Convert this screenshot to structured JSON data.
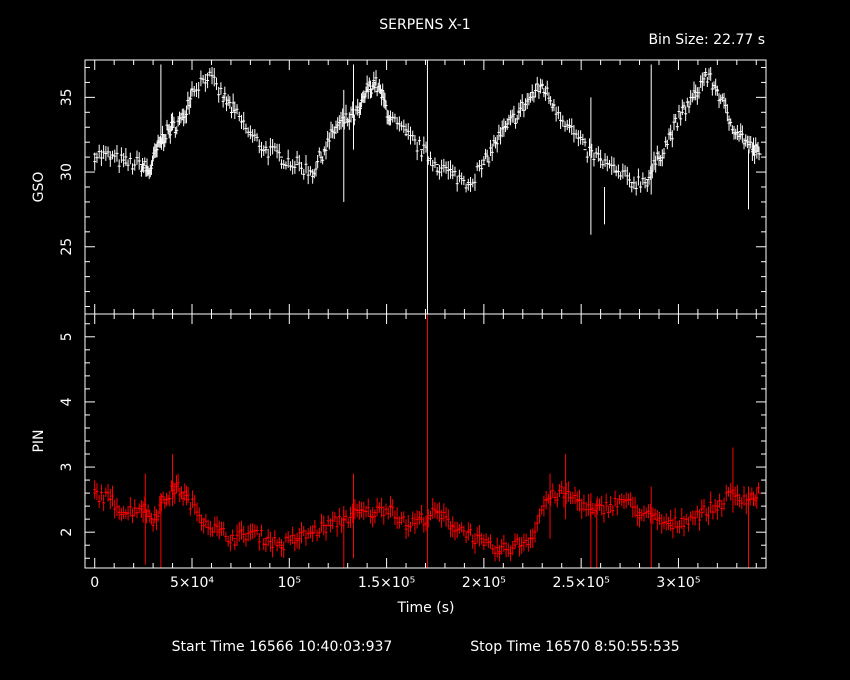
{
  "title": "SERPENS X-1",
  "bin_size_label": "Bin Size: 22.77 s",
  "start_label": "Start Time 16566 10:40:03:937",
  "stop_label": "Stop Time 16570  8:50:55:535",
  "colors": {
    "background": "#000000",
    "gso": "#ffffff",
    "pin": "#ff0000",
    "axes": "#ffffff"
  },
  "chart_data": [
    {
      "type": "line",
      "panel": "upper",
      "ylabel": "GSO",
      "ylim": [
        20.5,
        37.5
      ],
      "yticks": [
        25,
        30,
        35
      ],
      "xlim": [
        -5000,
        345000
      ],
      "series": [
        {
          "color": "#ffffff",
          "x": [
            0,
            8000,
            16000,
            24000,
            28000,
            32000,
            36000,
            40000,
            45000,
            50000,
            58000,
            66000,
            72000,
            80000,
            88000,
            96000,
            104000,
            112000,
            118000,
            124000,
            130000,
            136000,
            140000,
            144000,
            148000,
            152000,
            160000,
            168000,
            176000,
            184000,
            192000,
            200000,
            206000,
            212000,
            218000,
            224000,
            230000,
            236000,
            244000,
            252000,
            260000,
            268000,
            276000,
            284000,
            290000,
            296000,
            302000,
            308000,
            314000,
            320000,
            326000,
            332000,
            338000,
            342000
          ],
          "values": [
            31.2,
            31.0,
            30.6,
            30.5,
            30.0,
            31.5,
            32.5,
            33.0,
            33.5,
            35.5,
            36.5,
            35.0,
            34.0,
            32.5,
            31.5,
            31.0,
            30.5,
            30.0,
            31.5,
            33.0,
            33.5,
            34.0,
            35.5,
            36.0,
            35.0,
            33.5,
            32.5,
            31.5,
            30.5,
            29.8,
            29.3,
            30.5,
            32.0,
            33.0,
            34.0,
            35.0,
            35.8,
            34.5,
            33.0,
            31.5,
            30.8,
            30.0,
            29.3,
            29.5,
            31.0,
            32.5,
            34.0,
            35.0,
            36.5,
            35.5,
            33.5,
            32.5,
            31.5,
            31.2
          ]
        }
      ],
      "spikes": [
        {
          "x": 34000,
          "low": 32.0,
          "high": 37.2
        },
        {
          "x": 128000,
          "low": 28.0,
          "high": 35.5
        },
        {
          "x": 133000,
          "low": 31.5,
          "high": 37.2
        },
        {
          "x": 171000,
          "low": 20.5,
          "high": 37.5
        },
        {
          "x": 255000,
          "low": 25.8,
          "high": 35.0
        },
        {
          "x": 262000,
          "low": 26.5,
          "high": 29.0
        },
        {
          "x": 286000,
          "low": 28.5,
          "high": 37.2
        },
        {
          "x": 336000,
          "low": 27.5,
          "high": 31.5
        }
      ]
    },
    {
      "type": "line",
      "panel": "lower",
      "ylabel": "PIN",
      "xlabel": "Time (s)",
      "ylim": [
        1.45,
        5.35
      ],
      "yticks": [
        2,
        3,
        4,
        5
      ],
      "xlim": [
        -5000,
        345000
      ],
      "xticks": [
        0,
        50000,
        100000,
        150000,
        200000,
        250000,
        300000
      ],
      "xtick_labels": [
        "0",
        "5×10⁴",
        "10⁵",
        "1.5×10⁵",
        "2×10⁵",
        "2.5×10⁵",
        "3×10⁵"
      ],
      "series": [
        {
          "color": "#ff0000",
          "x": [
            0,
            8000,
            16000,
            24000,
            30000,
            36000,
            42000,
            48000,
            56000,
            64000,
            72000,
            80000,
            88000,
            96000,
            104000,
            112000,
            120000,
            128000,
            136000,
            144000,
            152000,
            160000,
            168000,
            176000,
            184000,
            192000,
            200000,
            208000,
            216000,
            224000,
            232000,
            240000,
            248000,
            256000,
            264000,
            272000,
            280000,
            288000,
            296000,
            304000,
            312000,
            320000,
            328000,
            336000,
            342000
          ],
          "values": [
            2.6,
            2.5,
            2.3,
            2.4,
            2.2,
            2.5,
            2.7,
            2.5,
            2.2,
            2.0,
            1.9,
            2.0,
            1.9,
            1.8,
            1.9,
            2.0,
            2.1,
            2.2,
            2.3,
            2.3,
            2.4,
            2.1,
            2.2,
            2.3,
            2.1,
            2.0,
            1.8,
            1.7,
            1.8,
            1.9,
            2.5,
            2.6,
            2.5,
            2.3,
            2.4,
            2.5,
            2.3,
            2.2,
            2.1,
            2.2,
            2.3,
            2.4,
            2.6,
            2.5,
            2.6
          ]
        }
      ],
      "spikes": [
        {
          "x": 26000,
          "low": 1.5,
          "high": 2.9
        },
        {
          "x": 34000,
          "low": 1.45,
          "high": 2.6
        },
        {
          "x": 40000,
          "low": 2.4,
          "high": 3.2
        },
        {
          "x": 128000,
          "low": 1.45,
          "high": 2.4
        },
        {
          "x": 133000,
          "low": 1.6,
          "high": 2.9
        },
        {
          "x": 171000,
          "low": 1.45,
          "high": 5.35
        },
        {
          "x": 234000,
          "low": 1.9,
          "high": 2.9
        },
        {
          "x": 242000,
          "low": 2.2,
          "high": 3.2
        },
        {
          "x": 255000,
          "low": 1.45,
          "high": 2.6
        },
        {
          "x": 258000,
          "low": 1.45,
          "high": 2.5
        },
        {
          "x": 286000,
          "low": 1.45,
          "high": 2.7
        },
        {
          "x": 328000,
          "low": 2.3,
          "high": 3.3
        },
        {
          "x": 336000,
          "low": 1.45,
          "high": 2.7
        }
      ]
    }
  ]
}
